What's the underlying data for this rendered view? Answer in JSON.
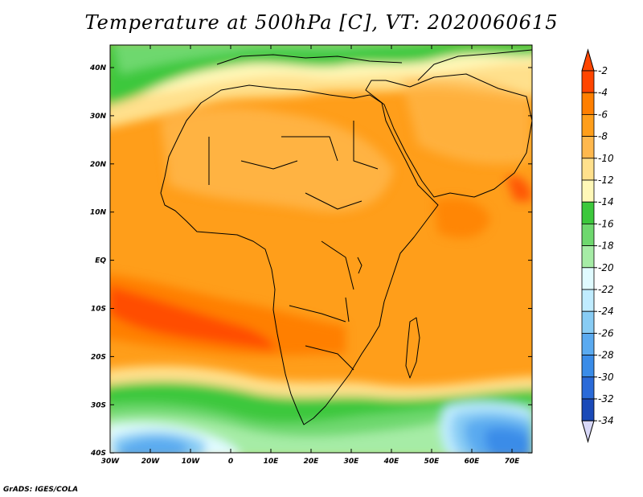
{
  "title": "Temperature at 500hPa [C], VT: 2020060615",
  "credit": "GrADS: IGES/COLA",
  "map": {
    "lat_labels": [
      "40N",
      "30N",
      "20N",
      "10N",
      "EQ",
      "10S",
      "20S",
      "30S",
      "40S"
    ],
    "lon_labels": [
      "30W",
      "20W",
      "10W",
      "0",
      "10E",
      "20E",
      "30E",
      "40E",
      "50E",
      "60E",
      "70E"
    ]
  },
  "colorbar": {
    "labels": [
      "-2",
      "-4",
      "-6",
      "-8",
      "-10",
      "-12",
      "-14",
      "-16",
      "-18",
      "-20",
      "-22",
      "-24",
      "-26",
      "-28",
      "-30",
      "-32",
      "-34"
    ],
    "colors": [
      "#ff4500",
      "#ff7f00",
      "#ff9e1a",
      "#ffb84d",
      "#ffe08c",
      "#fff8b8",
      "#3cc83c",
      "#6ed86e",
      "#a6eca6",
      "#e0fbff",
      "#c0ecff",
      "#88ccf4",
      "#5aaaf0",
      "#3a8ce8",
      "#2a6ad8",
      "#1a4ab8",
      "#0a1a7a"
    ]
  }
}
